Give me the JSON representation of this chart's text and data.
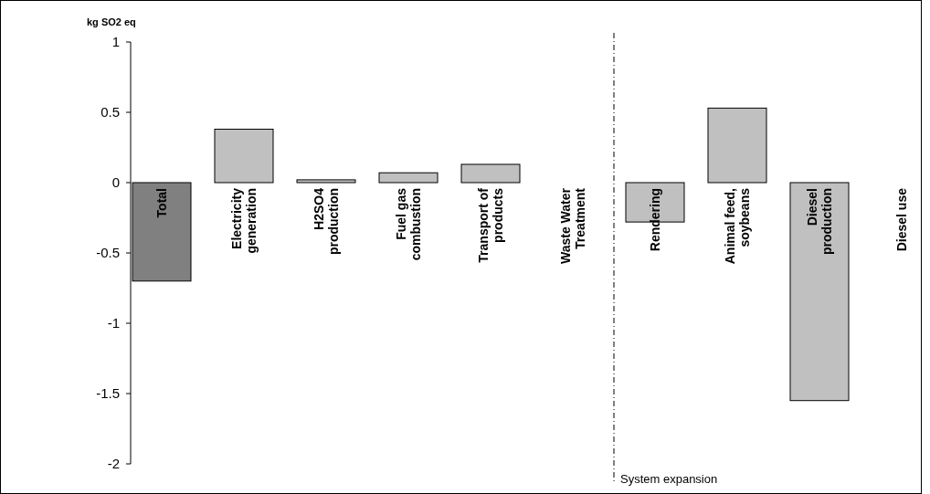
{
  "chart_data": {
    "type": "bar",
    "ylabel": "kg SO2 eq",
    "categories": [
      "Total",
      "Electricity generation",
      "H2SO4 production",
      "Fuel gas combustion",
      "Transport of products",
      "Waste Water Treatment",
      "Rendering",
      "Animal feed, soybeans",
      "Diesel production",
      "Diesel use"
    ],
    "values": [
      -0.7,
      0.38,
      0.02,
      0.07,
      0.13,
      0,
      -0.28,
      0.53,
      -1.55,
      0
    ],
    "colors": [
      "#808080",
      "#c0c0c0",
      "#c0c0c0",
      "#c0c0c0",
      "#c0c0c0",
      "#c0c0c0",
      "#c0c0c0",
      "#c0c0c0",
      "#c0c0c0",
      "#c0c0c0"
    ],
    "ylim": [
      -2,
      1
    ],
    "yticks": [
      -2,
      -1.5,
      -1,
      -0.5,
      0,
      0.5,
      1
    ],
    "annotations": [
      "System expansion"
    ]
  }
}
